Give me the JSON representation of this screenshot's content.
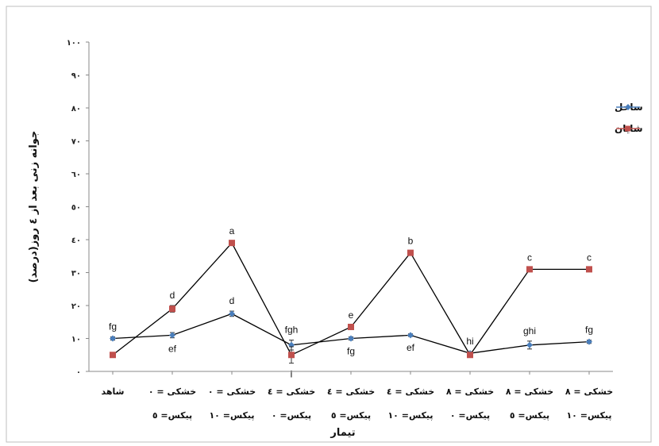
{
  "chart_data": {
    "type": "line",
    "title": "",
    "xlabel": "تیمار",
    "ylabel": "جوانه زنی بعد از ٤ روز(درصد)",
    "ylim": [
      0,
      100
    ],
    "yticks": [
      "٠",
      "١٠",
      "٢٠",
      "٣٠",
      "٤٠",
      "٥٠",
      "٦٠",
      "٧٠",
      "٨٠",
      "٩٠",
      "١٠٠"
    ],
    "grid": false,
    "legend_position": "right",
    "categories": [
      {
        "line1": "شاهد",
        "line2": ""
      },
      {
        "line1": "خشکی = ٠",
        "line2": "پیکس= ٥"
      },
      {
        "line1": "خشکی = ٠",
        "line2": "پیکس= ١٠"
      },
      {
        "line1": "خشکی = ٤",
        "line2": "پیکس= ٠"
      },
      {
        "line1": "خشکی = ٤",
        "line2": "پیکس= ٥"
      },
      {
        "line1": "خشکی = ٤",
        "line2": "پیکس= ١٠"
      },
      {
        "line1": "خشکی = ٨",
        "line2": "پیکس= ٠"
      },
      {
        "line1": "خشکی = ٨",
        "line2": "پیکس= ٥"
      },
      {
        "line1": "خشکی = ٨",
        "line2": "پیکس= ١٠"
      }
    ],
    "series": [
      {
        "name": "ساحل",
        "color": "#4a7ebb",
        "marker": "diamond",
        "values": [
          10,
          11,
          17.5,
          8,
          10,
          11,
          5.5,
          8,
          9
        ],
        "errors": [
          0.5,
          0.8,
          0.8,
          1.5,
          0.5,
          0.4,
          0.5,
          1.2,
          0.5
        ],
        "letters": [
          "fg",
          "ef",
          "d",
          "fgh",
          "fg",
          "ef",
          "hi",
          "ghi",
          "fg"
        ],
        "letter_pos": [
          "above",
          "below",
          "above",
          "above",
          "below",
          "below",
          "above",
          "above",
          "above"
        ]
      },
      {
        "name": "شایان",
        "color": "#c0504d",
        "marker": "square",
        "values": [
          5,
          19,
          39,
          5,
          13.5,
          36,
          5,
          31,
          31
        ],
        "errors": [
          0.3,
          1.0,
          0.5,
          2.5,
          0.5,
          0.5,
          0.5,
          0.5,
          0.5
        ],
        "letters": [
          "",
          "d",
          "a",
          "i",
          "e",
          "b",
          "",
          "c",
          "c"
        ],
        "letter_pos": [
          "above",
          "above",
          "above",
          "below",
          "above",
          "above",
          "above",
          "above",
          "above"
        ]
      }
    ]
  }
}
